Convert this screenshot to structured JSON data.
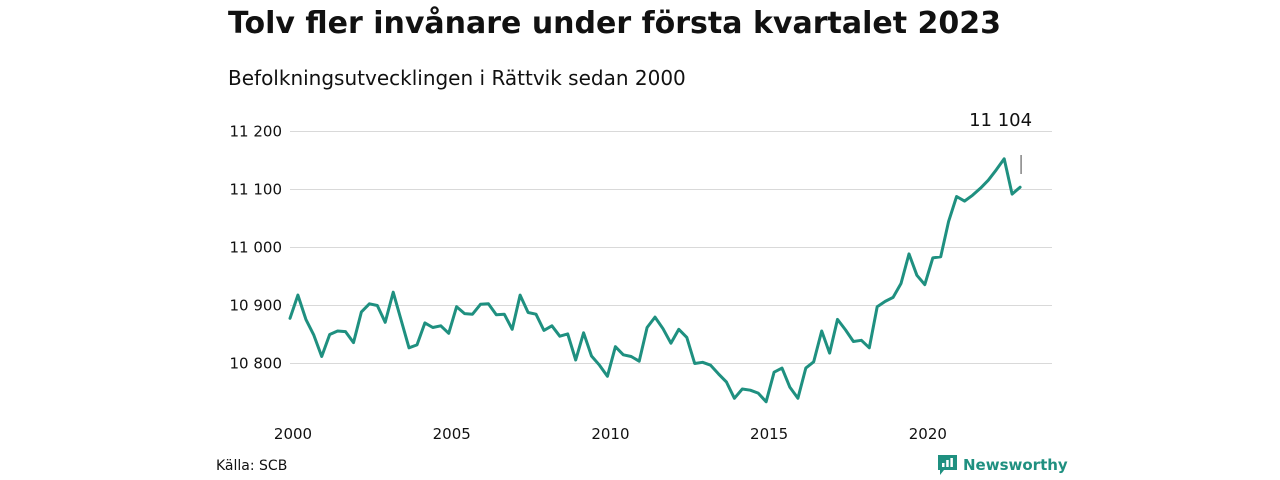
{
  "title": "Tolv fler invånare under första kvartalet 2023",
  "subtitle": "Befolkningsutvecklingen i Rättvik sedan 2000",
  "source": "Källa: SCB",
  "brand": "Newsworthy",
  "colors": {
    "line": "#1f9080",
    "grid": "#d9d9d9",
    "text": "#111111"
  },
  "chart_data": {
    "type": "line",
    "title": "Tolv fler invånare under första kvartalet 2023",
    "subtitle": "Befolkningsutvecklingen i Rättvik sedan 2000",
    "xlabel": "",
    "ylabel": "",
    "xlim": [
      2000,
      2023.25
    ],
    "ylim": [
      10740,
      11220
    ],
    "grid": true,
    "y_ticks": [
      10800,
      10900,
      11000,
      11100,
      11200
    ],
    "y_tick_labels": [
      "10 800",
      "10 900",
      "11 000",
      "11 100",
      "11 200"
    ],
    "x_ticks": [
      2000,
      2005,
      2010,
      2015,
      2020
    ],
    "x_tick_labels": [
      "2000",
      "2005",
      "2010",
      "2015",
      "2020"
    ],
    "end_label": "11 104",
    "series": [
      {
        "x": [
          2000.0,
          2000.25,
          2000.5,
          2000.75,
          2001.0,
          2001.25,
          2001.5,
          2001.75,
          2002.0,
          2002.25,
          2002.5,
          2002.75,
          2003.0,
          2003.25,
          2003.5,
          2003.75,
          2004.0,
          2004.25,
          2004.5,
          2004.75,
          2005.0,
          2005.25,
          2005.5,
          2005.75,
          2006.0,
          2006.25,
          2006.5,
          2006.75,
          2007.0,
          2007.25,
          2007.5,
          2007.75,
          2008.0,
          2008.25,
          2008.5,
          2008.75,
          2009.0,
          2009.25,
          2009.5,
          2009.75,
          2010.0,
          2010.25,
          2010.5,
          2010.75,
          2011.0,
          2011.25,
          2011.5,
          2011.75,
          2012.0,
          2012.25,
          2012.5,
          2012.75,
          2013.0,
          2013.25,
          2013.5,
          2013.75,
          2014.0,
          2014.25,
          2014.5,
          2014.75,
          2015.0,
          2015.25,
          2015.5,
          2015.75,
          2016.0,
          2016.25,
          2016.5,
          2016.75,
          2017.0,
          2017.25,
          2017.5,
          2017.75,
          2018.0,
          2018.25,
          2018.5,
          2018.75,
          2019.0,
          2019.25,
          2019.5,
          2019.75,
          2020.0,
          2020.25,
          2020.5,
          2020.75,
          2021.0,
          2021.25,
          2021.5,
          2021.75,
          2022.0,
          2022.25,
          2022.5,
          2022.75,
          2023.0
        ],
        "values": [
          10878,
          10918,
          10876,
          10849,
          10812,
          10850,
          10856,
          10855,
          10836,
          10889,
          10903,
          10900,
          10871,
          10923,
          10875,
          10827,
          10832,
          10870,
          10862,
          10865,
          10852,
          10898,
          10886,
          10885,
          10902,
          10903,
          10884,
          10885,
          10859,
          10918,
          10888,
          10885,
          10857,
          10865,
          10847,
          10851,
          10806,
          10853,
          10813,
          10797,
          10778,
          10829,
          10815,
          10812,
          10804,
          10862,
          10880,
          10860,
          10835,
          10859,
          10845,
          10800,
          10802,
          10797,
          10782,
          10768,
          10740,
          10756,
          10754,
          10749,
          10734,
          10785,
          10792,
          10759,
          10740,
          10792,
          10803,
          10856,
          10818,
          10876,
          10858,
          10838,
          10840,
          10827,
          10898,
          10907,
          10914,
          10938,
          10989,
          10952,
          10936,
          10982,
          10984,
          11045,
          11088,
          11080,
          11090,
          11102,
          11116,
          11134,
          11153,
          11092,
          11104
        ]
      }
    ]
  }
}
